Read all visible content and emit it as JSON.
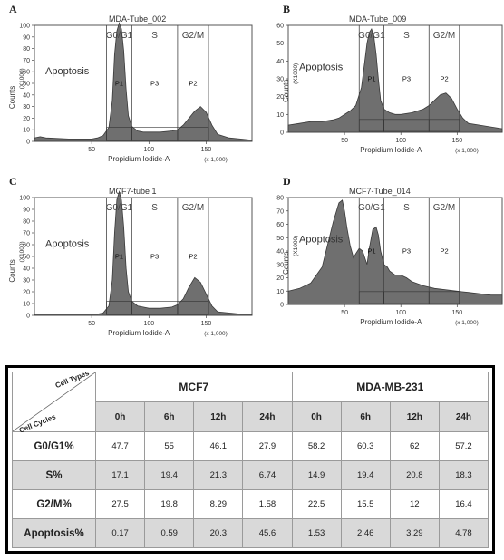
{
  "panels": [
    {
      "letter": "A",
      "title": "MDA-Tube_002",
      "y_ticks": [
        "0",
        "10",
        "20",
        "30",
        "40",
        "50",
        "60",
        "70",
        "80",
        "90",
        "100"
      ],
      "y_max": 100,
      "x_ticks": [
        "50",
        "100",
        "150"
      ],
      "x_label": "Propidium Iodide-A",
      "x_mult": "(x 1,000)",
      "y_label": "Counts",
      "y_mult": "(X1000)",
      "gates": [
        "G0/G1",
        "S",
        "G2/M"
      ],
      "gate_ids": [
        "P1",
        "P3",
        "P2"
      ],
      "apoptosis": "Apoptosis",
      "chart_data": {
        "type": "area",
        "x_unit": "Propidium Iodide-A (x 1,000)",
        "x": [
          0,
          5,
          10,
          20,
          30,
          40,
          50,
          55,
          60,
          65,
          68,
          70,
          72,
          74,
          76,
          78,
          80,
          82,
          85,
          90,
          95,
          100,
          110,
          120,
          125,
          130,
          135,
          140,
          145,
          150,
          155,
          160,
          170,
          180,
          190
        ],
        "y": [
          3,
          4,
          3,
          2.5,
          2,
          2,
          2,
          3,
          5,
          12,
          35,
          75,
          95,
          102,
          97,
          78,
          45,
          22,
          13,
          9,
          8,
          8,
          8,
          9,
          10,
          14,
          20,
          26,
          30,
          25,
          14,
          6,
          3,
          2,
          1
        ]
      }
    },
    {
      "letter": "B",
      "title": "MDA-Tube_009",
      "y_ticks": [
        "0",
        "10",
        "20",
        "30",
        "40",
        "50",
        "60"
      ],
      "y_max": 60,
      "x_ticks": [
        "50",
        "100",
        "150"
      ],
      "x_label": "Propidium Iodide-A",
      "x_mult": "(x 1,000)",
      "y_label": "Counts",
      "y_mult": "(X1000)",
      "gates": [
        "G0/G1",
        "S",
        "G2/M"
      ],
      "gate_ids": [
        "P1",
        "P3",
        "P2"
      ],
      "apoptosis": "Apoptosis",
      "chart_data": {
        "type": "area",
        "x_unit": "Propidium Iodide-A (x 1,000)",
        "x": [
          0,
          10,
          20,
          30,
          40,
          45,
          50,
          55,
          60,
          65,
          68,
          70,
          72,
          74,
          76,
          78,
          80,
          82,
          85,
          90,
          95,
          100,
          110,
          120,
          125,
          130,
          135,
          140,
          145,
          150,
          155,
          160,
          170,
          180,
          190
        ],
        "y": [
          4,
          5,
          6,
          6,
          7,
          8,
          10,
          12,
          15,
          25,
          40,
          50,
          56,
          58,
          54,
          44,
          30,
          18,
          13,
          11,
          10,
          10,
          11,
          13,
          15,
          18,
          21,
          22,
          19,
          13,
          8,
          5,
          4,
          3,
          2
        ]
      }
    },
    {
      "letter": "C",
      "title": "MCF7-tube 1",
      "y_ticks": [
        "0",
        "10",
        "20",
        "30",
        "40",
        "50",
        "60",
        "70",
        "80",
        "90",
        "100"
      ],
      "y_max": 100,
      "x_ticks": [
        "50",
        "100",
        "150"
      ],
      "x_label": "Propidium Iodide-A",
      "x_mult": "(x 1,000)",
      "y_label": "Counts",
      "y_mult": "(X1000)",
      "gates": [
        "G0/G1",
        "S",
        "G2/M"
      ],
      "gate_ids": [
        "P1",
        "P3",
        "P2"
      ],
      "apoptosis": "Apoptosis",
      "chart_data": {
        "type": "area",
        "x_unit": "Propidium Iodide-A (x 1,000)",
        "x": [
          0,
          10,
          20,
          30,
          40,
          50,
          55,
          60,
          65,
          68,
          70,
          72,
          74,
          76,
          78,
          80,
          82,
          85,
          90,
          95,
          100,
          110,
          120,
          125,
          130,
          135,
          140,
          145,
          150,
          155,
          160,
          170,
          180,
          190
        ],
        "y": [
          1,
          1,
          1,
          1,
          1,
          1,
          1,
          2,
          8,
          30,
          70,
          98,
          105,
          98,
          75,
          40,
          20,
          12,
          8,
          7,
          6,
          6,
          7,
          9,
          14,
          24,
          32,
          28,
          18,
          8,
          3,
          2,
          1,
          1
        ]
      }
    },
    {
      "letter": "D",
      "title": "MCF7-Tube_014",
      "y_ticks": [
        "0",
        "10",
        "20",
        "30",
        "40",
        "50",
        "60",
        "70",
        "80"
      ],
      "y_max": 80,
      "x_ticks": [
        "50",
        "100",
        "150"
      ],
      "x_label": "Propidium Iodide-A",
      "x_mult": "(x 1,000)",
      "y_label": "Counts",
      "y_mult": "(X1000)",
      "gates": [
        "G0/G1",
        "S",
        "G2/M"
      ],
      "gate_ids": [
        "P1",
        "P3",
        "P2"
      ],
      "apoptosis": "Apoptosis",
      "chart_data": {
        "type": "area",
        "x_unit": "Propidium Iodide-A (x 1,000)",
        "x": [
          0,
          10,
          20,
          30,
          35,
          40,
          45,
          48,
          50,
          52,
          55,
          58,
          60,
          63,
          66,
          70,
          72,
          75,
          78,
          80,
          82,
          85,
          88,
          90,
          95,
          100,
          105,
          110,
          120,
          130,
          140,
          150,
          160,
          170,
          180,
          190
        ],
        "y": [
          10,
          12,
          16,
          28,
          45,
          62,
          76,
          78,
          70,
          58,
          44,
          35,
          38,
          42,
          40,
          30,
          42,
          56,
          58,
          52,
          40,
          30,
          28,
          25,
          22,
          22,
          20,
          17,
          14,
          12,
          11,
          10,
          9,
          8,
          7,
          7
        ]
      }
    }
  ],
  "table": {
    "corner_top": "Cell Types",
    "corner_bottom": "Cell Cycles",
    "groups": [
      "MCF7",
      "MDA-MB-231"
    ],
    "times": [
      "0h",
      "6h",
      "12h",
      "24h",
      "0h",
      "6h",
      "12h",
      "24h"
    ],
    "rows": [
      {
        "label": "G0/G1%",
        "values": [
          "47.7",
          "55",
          "46.1",
          "27.9",
          "58.2",
          "60.3",
          "62",
          "57.2"
        ]
      },
      {
        "label": "S%",
        "values": [
          "17.1",
          "19.4",
          "21.3",
          "6.74",
          "14.9",
          "19.4",
          "20.8",
          "18.3"
        ]
      },
      {
        "label": "G2/M%",
        "values": [
          "27.5",
          "19.8",
          "8.29",
          "1.58",
          "22.5",
          "15.5",
          "12",
          "16.4"
        ]
      },
      {
        "label": "Apoptosis%",
        "values": [
          "0.17",
          "0.59",
          "20.3",
          "45.6",
          "1.53",
          "2.46",
          "3.29",
          "4.78"
        ]
      }
    ]
  }
}
